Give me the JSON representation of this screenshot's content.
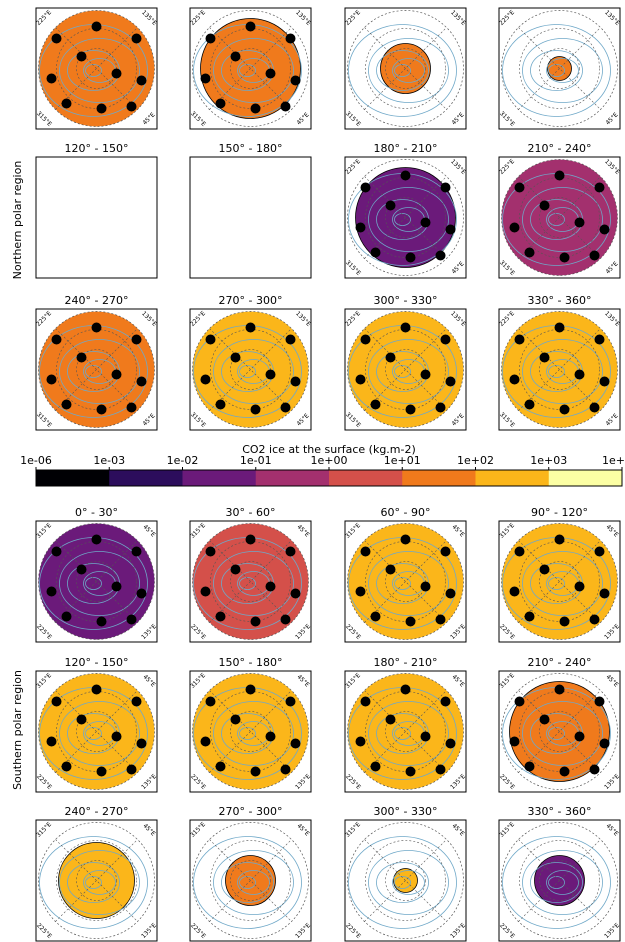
{
  "chart_data": {
    "type": "polar-maps",
    "row_labels": {
      "north": "Northern polar region",
      "south": "Southern polar region"
    },
    "north_lon_labels": {
      "top_left": "225°E",
      "top_right": "135°E",
      "bottom_left": "315°E",
      "bottom_right": "45°E"
    },
    "south_lon_labels": {
      "top_left": "315°E",
      "top_right": "45°E",
      "bottom_left": "225°E",
      "bottom_right": "135°E"
    },
    "north_panels": [
      {
        "color": "#f07a1c",
        "extent": "full"
      },
      {
        "color": "#f07a1c",
        "extent": "large"
      },
      {
        "color": "#f07a1c",
        "extent": "small"
      },
      {
        "color": "#f07a1c",
        "extent": "tiny"
      },
      {
        "title": "120° - 150°",
        "extent": "none"
      },
      {
        "title": "150° - 180°",
        "extent": "none"
      },
      {
        "title": "180° - 210°",
        "color": "#6b1a7a",
        "extent": "large"
      },
      {
        "title": "210° - 240°",
        "color": "#a3306e",
        "extent": "full"
      },
      {
        "title": "240° - 270°",
        "color": "#f07a1c",
        "extent": "full"
      },
      {
        "title": "270° - 300°",
        "color": "#fbb61a",
        "extent": "full"
      },
      {
        "title": "300° - 330°",
        "color": "#fbb61a",
        "extent": "full"
      },
      {
        "title": "330° - 360°",
        "color": "#fbb61a",
        "extent": "full"
      }
    ],
    "south_panels": [
      {
        "title": "0° - 30°",
        "color": "#6b1a7a",
        "extent": "full"
      },
      {
        "title": "30° - 60°",
        "color": "#d4504a",
        "extent": "full"
      },
      {
        "title": "60° - 90°",
        "color": "#fbb61a",
        "extent": "full"
      },
      {
        "title": "90° - 120°",
        "color": "#fbb61a",
        "extent": "full"
      },
      {
        "title": "120° - 150°",
        "color": "#fbb61a",
        "extent": "full"
      },
      {
        "title": "150° - 180°",
        "color": "#fbb61a",
        "extent": "full"
      },
      {
        "title": "180° - 210°",
        "color": "#fbb61a",
        "extent": "full"
      },
      {
        "title": "210° - 240°",
        "color": "#f07a1c",
        "extent": "large"
      },
      {
        "title": "240° - 270°",
        "color": "#fbb61a",
        "extent": "medium"
      },
      {
        "title": "270° - 300°",
        "color": "#f07a1c",
        "extent": "small"
      },
      {
        "title": "300° - 330°",
        "color": "#fbb61a",
        "extent": "tiny"
      },
      {
        "title": "330° - 360°",
        "color": "#6b1a7a",
        "extent": "small"
      }
    ],
    "colorbar": {
      "label": "CO2 ice at the surface (kg.m-2)",
      "ticks": [
        "1e-06",
        "1e-03",
        "1e-02",
        "1e-01",
        "1e+00",
        "1e+01",
        "1e+02",
        "1e+03",
        "1e+"
      ],
      "colors": [
        "#000004",
        "#2c0d5c",
        "#6b1a7a",
        "#a3306e",
        "#d4504a",
        "#f07a1c",
        "#fbb61a",
        "#fcffa4"
      ]
    }
  }
}
